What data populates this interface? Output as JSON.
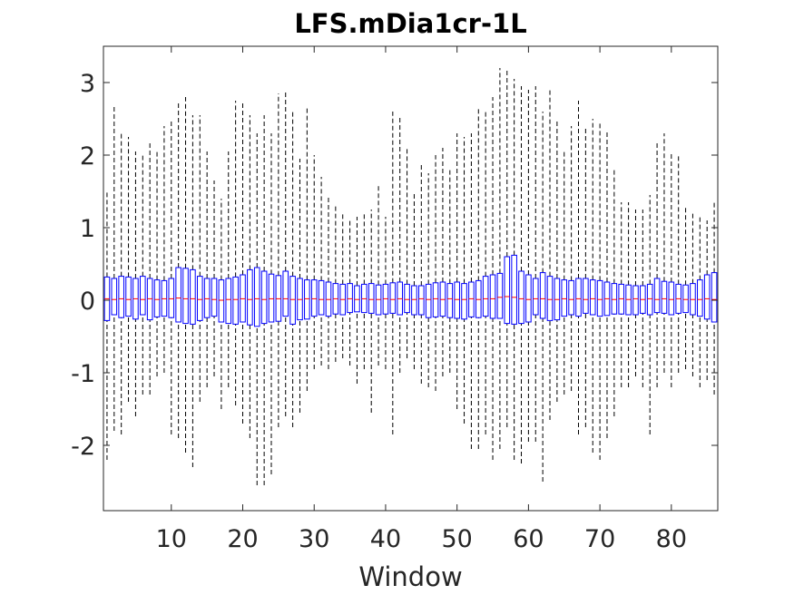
{
  "chart_data": {
    "type": "boxplot",
    "title": "LFS.mDia1cr-1L",
    "xlabel": "Window",
    "ylabel": "",
    "xlim": [
      0.5,
      86.5
    ],
    "ylim": [
      -2.9,
      3.5
    ],
    "xticks": [
      10,
      20,
      30,
      40,
      50,
      60,
      70,
      80
    ],
    "xtick_labels": [
      "10",
      "20",
      "30",
      "40",
      "50",
      "60",
      "70",
      "80"
    ],
    "yticks": [
      -2,
      -1,
      0,
      1,
      2,
      3
    ],
    "ytick_labels": [
      "-2",
      "-1",
      "0",
      "1",
      "2",
      "3"
    ],
    "grid": false,
    "colors": {
      "box": "#0000ff",
      "median": "#ff0000",
      "whisker": "#000000",
      "axis": "#262626"
    },
    "windows": [
      1,
      2,
      3,
      4,
      5,
      6,
      7,
      8,
      9,
      10,
      11,
      12,
      13,
      14,
      15,
      16,
      17,
      18,
      19,
      20,
      21,
      22,
      23,
      24,
      25,
      26,
      27,
      28,
      29,
      30,
      31,
      32,
      33,
      34,
      35,
      36,
      37,
      38,
      39,
      40,
      41,
      42,
      43,
      44,
      45,
      46,
      47,
      48,
      49,
      50,
      51,
      52,
      53,
      54,
      55,
      56,
      57,
      58,
      59,
      60,
      61,
      62,
      63,
      64,
      65,
      66,
      67,
      68,
      69,
      70,
      71,
      72,
      73,
      74,
      75,
      76,
      77,
      78,
      79,
      80,
      81,
      82,
      83,
      84,
      85,
      86
    ],
    "median": [
      0.02,
      0.01,
      0.02,
      0.01,
      0.02,
      0.01,
      0.02,
      0.01,
      0.02,
      0.02,
      0.03,
      0.02,
      0.02,
      0.01,
      0.02,
      0.01,
      0.0,
      0.01,
      0.01,
      0.02,
      0.01,
      0.02,
      0.01,
      0.02,
      0.02,
      0.02,
      0.01,
      0.01,
      0.02,
      0.02,
      0.01,
      0.01,
      0.02,
      0.01,
      0.02,
      0.01,
      0.02,
      0.01,
      0.01,
      0.02,
      0.01,
      0.02,
      0.01,
      0.01,
      0.02,
      0.01,
      0.02,
      0.01,
      0.02,
      0.01,
      0.01,
      0.02,
      0.01,
      0.02,
      0.02,
      0.04,
      0.05,
      0.04,
      0.02,
      0.01,
      0.02,
      0.02,
      0.01,
      0.01,
      0.02,
      0.01,
      0.02,
      0.01,
      0.02,
      0.01,
      0.02,
      0.01,
      0.02,
      0.01,
      0.02,
      0.01,
      0.02,
      0.01,
      0.02,
      0.01,
      0.02,
      0.01,
      0.01,
      0.01,
      0.02,
      0.01
    ],
    "q1": [
      -0.28,
      -0.2,
      -0.24,
      -0.22,
      -0.26,
      -0.2,
      -0.27,
      -0.23,
      -0.22,
      -0.24,
      -0.3,
      -0.32,
      -0.33,
      -0.28,
      -0.24,
      -0.22,
      -0.3,
      -0.32,
      -0.33,
      -0.3,
      -0.34,
      -0.36,
      -0.32,
      -0.3,
      -0.29,
      -0.22,
      -0.33,
      -0.27,
      -0.26,
      -0.22,
      -0.2,
      -0.22,
      -0.19,
      -0.2,
      -0.17,
      -0.16,
      -0.17,
      -0.18,
      -0.2,
      -0.19,
      -0.18,
      -0.2,
      -0.17,
      -0.2,
      -0.2,
      -0.24,
      -0.23,
      -0.22,
      -0.24,
      -0.25,
      -0.26,
      -0.23,
      -0.24,
      -0.22,
      -0.25,
      -0.25,
      -0.32,
      -0.33,
      -0.32,
      -0.3,
      -0.2,
      -0.25,
      -0.28,
      -0.27,
      -0.22,
      -0.2,
      -0.22,
      -0.18,
      -0.2,
      -0.22,
      -0.21,
      -0.19,
      -0.19,
      -0.2,
      -0.2,
      -0.18,
      -0.2,
      -0.17,
      -0.18,
      -0.2,
      -0.18,
      -0.17,
      -0.2,
      -0.22,
      -0.26,
      -0.3
    ],
    "q3": [
      0.32,
      0.3,
      0.33,
      0.32,
      0.3,
      0.33,
      0.3,
      0.28,
      0.27,
      0.3,
      0.45,
      0.44,
      0.42,
      0.33,
      0.3,
      0.3,
      0.28,
      0.3,
      0.32,
      0.35,
      0.42,
      0.45,
      0.4,
      0.36,
      0.34,
      0.4,
      0.33,
      0.3,
      0.28,
      0.28,
      0.27,
      0.25,
      0.23,
      0.22,
      0.23,
      0.2,
      0.22,
      0.23,
      0.21,
      0.22,
      0.24,
      0.25,
      0.22,
      0.2,
      0.2,
      0.22,
      0.24,
      0.25,
      0.23,
      0.25,
      0.23,
      0.25,
      0.27,
      0.33,
      0.35,
      0.37,
      0.6,
      0.62,
      0.4,
      0.35,
      0.3,
      0.38,
      0.33,
      0.3,
      0.28,
      0.27,
      0.3,
      0.3,
      0.28,
      0.27,
      0.25,
      0.23,
      0.22,
      0.21,
      0.2,
      0.2,
      0.22,
      0.3,
      0.26,
      0.25,
      0.22,
      0.21,
      0.23,
      0.28,
      0.35,
      0.38
    ],
    "whisker_low": [
      -2.2,
      -1.8,
      -1.85,
      -1.4,
      -1.6,
      -1.3,
      -1.3,
      -1.05,
      -1.0,
      -1.85,
      -1.9,
      -2.1,
      -2.3,
      -1.4,
      -1.2,
      -1.05,
      -1.5,
      -1.2,
      -1.45,
      -1.7,
      -1.9,
      -2.55,
      -2.55,
      -2.4,
      -1.75,
      -1.6,
      -1.75,
      -1.55,
      -1.25,
      -0.95,
      -0.9,
      -0.95,
      -0.85,
      -0.8,
      -0.9,
      -1.15,
      -0.95,
      -1.55,
      -0.9,
      -0.95,
      -1.85,
      -1.0,
      -0.8,
      -0.95,
      -1.15,
      -1.2,
      -1.25,
      -1.05,
      -1.0,
      -1.5,
      -1.7,
      -2.05,
      -2.05,
      -1.85,
      -2.2,
      -2.05,
      -1.75,
      -2.2,
      -2.25,
      -1.95,
      -1.95,
      -2.5,
      -1.65,
      -1.4,
      -1.3,
      -1.25,
      -1.85,
      -1.75,
      -2.1,
      -2.2,
      -1.9,
      -1.6,
      -1.2,
      -1.2,
      -1.05,
      -1.2,
      -1.85,
      -1.2,
      -1.0,
      -1.2,
      -1.0,
      -0.95,
      -1.05,
      -1.2,
      -1.1,
      -1.3
    ],
    "whisker_high": [
      1.5,
      2.7,
      2.3,
      2.25,
      2.05,
      2.0,
      2.2,
      2.05,
      2.4,
      2.5,
      2.75,
      2.8,
      2.55,
      2.55,
      2.05,
      1.65,
      1.4,
      2.05,
      2.75,
      2.75,
      2.55,
      2.3,
      2.55,
      2.3,
      2.85,
      2.9,
      2.6,
      1.95,
      2.65,
      2.0,
      1.7,
      1.45,
      1.3,
      1.2,
      1.1,
      1.15,
      1.2,
      1.25,
      1.6,
      1.15,
      2.6,
      2.55,
      2.1,
      1.5,
      1.9,
      1.75,
      2.0,
      2.1,
      1.8,
      2.3,
      2.25,
      2.3,
      2.65,
      2.6,
      2.8,
      3.2,
      3.2,
      3.05,
      2.95,
      2.9,
      2.95,
      2.6,
      2.9,
      2.5,
      2.05,
      2.4,
      2.75,
      2.4,
      2.5,
      2.45,
      2.35,
      1.8,
      1.35,
      1.35,
      1.25,
      1.25,
      1.45,
      2.2,
      2.3,
      2.05,
      2.0,
      1.3,
      1.2,
      1.15,
      1.1,
      1.35
    ]
  }
}
